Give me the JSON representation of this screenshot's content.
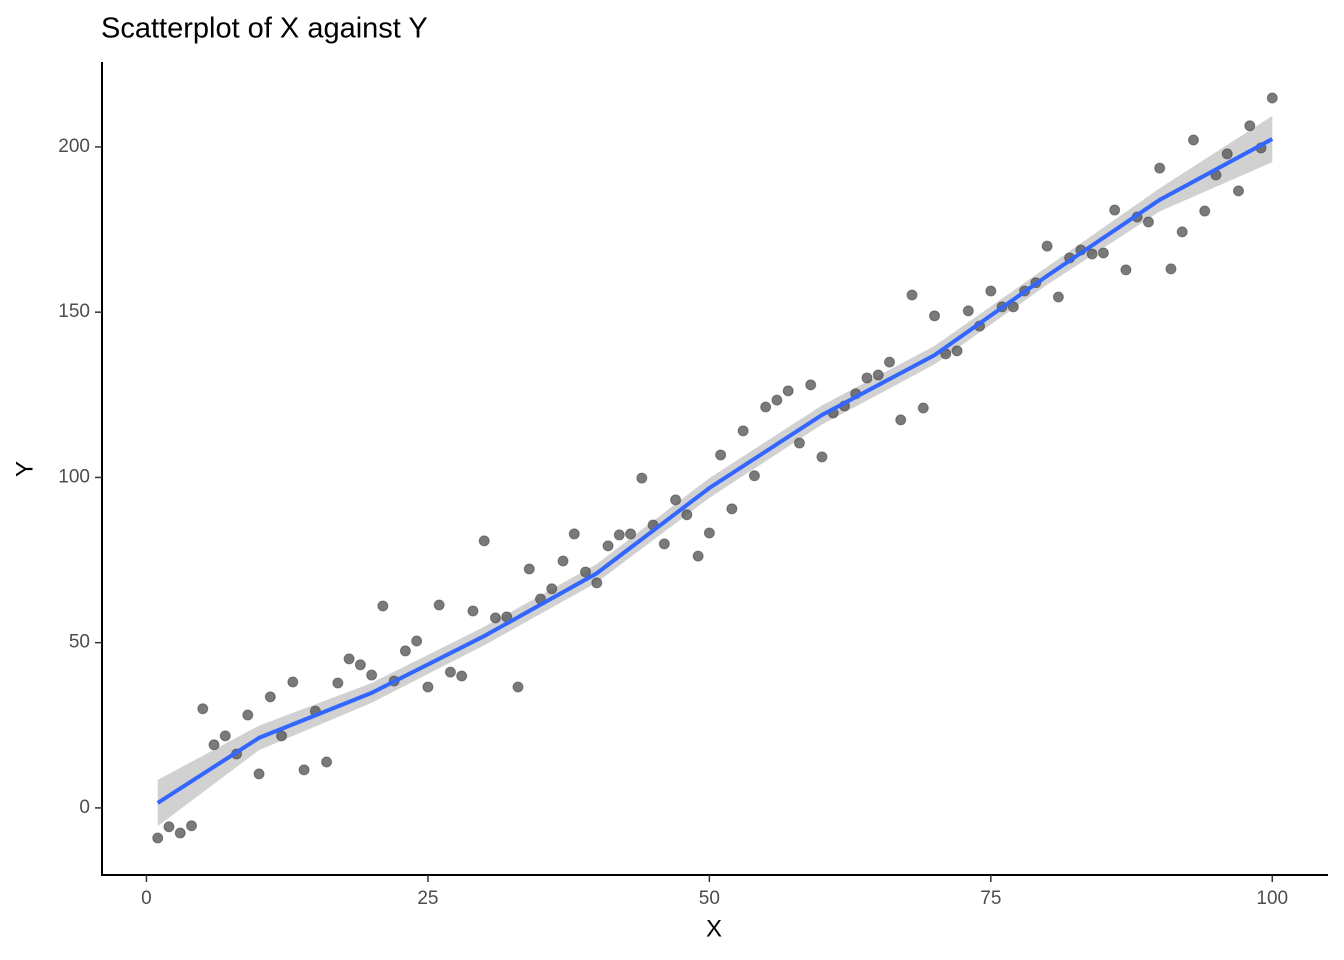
{
  "chart_data": {
    "type": "scatter",
    "title": "Scatterplot of X against Y",
    "x_label": "X",
    "y_label": "Y",
    "x": [
      1,
      2,
      3,
      4,
      5,
      6,
      7,
      8,
      9,
      10,
      11,
      12,
      13,
      14,
      15,
      16,
      17,
      18,
      19,
      20,
      21,
      22,
      23,
      24,
      25,
      26,
      27,
      28,
      29,
      30,
      31,
      32,
      33,
      34,
      35,
      36,
      37,
      38,
      39,
      40,
      41,
      42,
      43,
      44,
      45,
      46,
      47,
      48,
      49,
      50,
      51,
      52,
      53,
      54,
      55,
      56,
      57,
      58,
      59,
      60,
      61,
      62,
      63,
      64,
      65,
      66,
      67,
      68,
      69,
      70,
      71,
      72,
      73,
      74,
      75,
      76,
      77,
      78,
      79,
      80,
      81,
      82,
      83,
      84,
      85,
      86,
      87,
      88,
      89,
      90,
      91,
      92,
      93,
      94,
      95,
      96,
      97,
      98,
      99,
      100
    ],
    "values": [
      -9.1,
      -5.7,
      -7.6,
      -5.4,
      30.0,
      19.1,
      21.8,
      16.3,
      28.1,
      10.3,
      33.6,
      21.8,
      38.1,
      11.5,
      29.3,
      13.9,
      37.8,
      45.1,
      43.3,
      40.2,
      61.1,
      38.4,
      47.5,
      50.5,
      36.6,
      61.4,
      41.1,
      39.9,
      59.6,
      80.8,
      57.5,
      57.8,
      36.6,
      72.3,
      63.2,
      66.3,
      74.7,
      82.9,
      71.4,
      68.1,
      79.3,
      82.6,
      82.9,
      99.8,
      85.6,
      79.9,
      93.2,
      88.7,
      76.2,
      83.2,
      106.8,
      90.5,
      114.1,
      100.5,
      121.3,
      123.4,
      126.2,
      110.4,
      128.0,
      106.2,
      119.5,
      121.6,
      125.3,
      130.1,
      131.0,
      134.9,
      117.4,
      155.2,
      121.0,
      148.9,
      137.4,
      138.3,
      150.4,
      145.8,
      156.4,
      151.6,
      151.6,
      156.4,
      158.9,
      170.0,
      154.6,
      166.4,
      168.8,
      167.6,
      167.9,
      180.9,
      162.8,
      178.8,
      177.3,
      193.6,
      163.1,
      174.3,
      202.1,
      180.6,
      191.5,
      197.9,
      186.7,
      206.4,
      199.7,
      214.8
    ],
    "color": "#595959",
    "smooth": {
      "color": "#3366ff",
      "band_color": "#bebebe",
      "x": [
        1,
        10,
        20,
        30,
        40,
        50,
        60,
        70,
        80,
        90,
        100
      ],
      "y": [
        1.5,
        21.2,
        34.8,
        52.0,
        71.0,
        96.8,
        118.9,
        137.0,
        161.0,
        184.0,
        202.4
      ],
      "ymin": [
        -5.5,
        17.5,
        31.8,
        49.2,
        68.2,
        93.8,
        116.0,
        134.2,
        158.3,
        180.5,
        195.4
      ],
      "ymax": [
        8.5,
        24.9,
        37.8,
        54.8,
        73.8,
        99.8,
        121.8,
        139.8,
        163.7,
        187.5,
        209.4
      ]
    },
    "xlim": [
      -3.95,
      104.95
    ],
    "ylim": [
      -20.3,
      225.7
    ],
    "xticks": [
      0,
      25,
      50,
      75,
      100
    ],
    "yticks": [
      0,
      50,
      100,
      150,
      200
    ]
  }
}
